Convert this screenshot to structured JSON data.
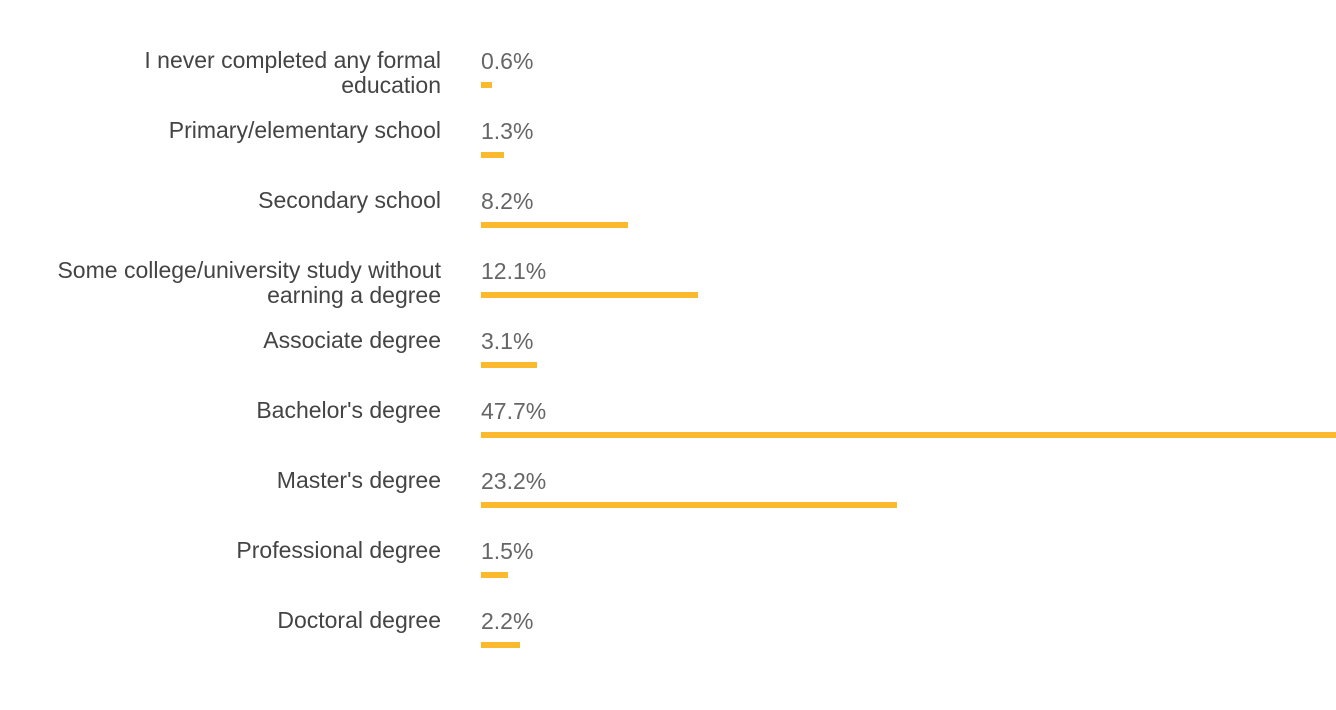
{
  "chart_data": {
    "type": "bar",
    "orientation": "horizontal",
    "categories": [
      "I never completed any formal\neducation",
      "Primary/elementary school",
      "Secondary school",
      "Some college/university study without\nearning a degree",
      "Associate degree",
      "Bachelor's degree",
      "Master's degree",
      "Professional degree",
      "Doctoral degree"
    ],
    "values": [
      0.6,
      1.3,
      8.2,
      12.1,
      3.1,
      47.7,
      23.2,
      1.5,
      2.2
    ],
    "value_labels": [
      "0.6%",
      "1.3%",
      "8.2%",
      "12.1%",
      "3.1%",
      "47.7%",
      "23.2%",
      "1.5%",
      "2.2%"
    ],
    "unit": "%",
    "xlim": [
      0,
      47.7
    ],
    "grid": false,
    "title": "",
    "xlabel": "",
    "ylabel": ""
  },
  "colors": {
    "bar": "#fbb92e",
    "label_text": "#444444",
    "value_text": "#666666"
  }
}
